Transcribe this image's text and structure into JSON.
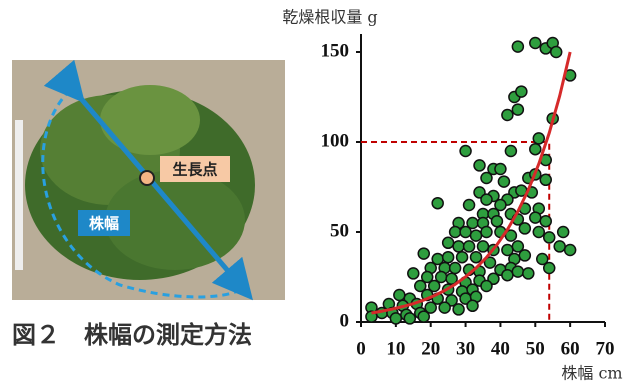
{
  "photo": {
    "growth_point_label": "生長点",
    "width_label": "株幅",
    "caption": "図２　株幅の測定方法"
  },
  "chart_data": {
    "type": "scatter",
    "y_label": "乾燥根収量 g",
    "x_label": "株幅 cm",
    "xlim": [
      0,
      70
    ],
    "xticks": [
      0,
      10,
      20,
      30,
      40,
      50,
      60,
      70
    ],
    "ylim": [
      0,
      160
    ],
    "yticks": [
      0,
      50,
      100,
      150
    ],
    "series": [
      {
        "type": "scatter",
        "color": "#2e9e3e",
        "x": [
          45,
          50,
          53,
          55,
          56,
          60,
          44,
          46,
          45,
          42,
          51,
          55,
          50,
          53,
          43,
          30,
          34,
          38,
          40,
          36,
          48,
          50,
          53,
          41,
          44,
          46,
          49,
          38,
          42,
          34,
          36,
          40,
          22,
          31,
          35,
          38,
          43,
          47,
          51,
          28,
          32,
          35,
          39,
          45,
          50,
          53,
          27,
          30,
          33,
          36,
          40,
          43,
          47,
          51,
          54,
          58,
          57,
          60,
          25,
          28,
          31,
          35,
          38,
          42,
          45,
          18,
          22,
          25,
          29,
          33,
          37,
          44,
          47,
          52,
          20,
          24,
          27,
          31,
          34,
          40,
          43,
          54,
          15,
          19,
          23,
          26,
          30,
          34,
          38,
          42,
          45,
          17,
          21,
          25,
          29,
          32,
          36,
          48,
          11,
          14,
          19,
          22,
          26,
          30,
          33,
          8,
          12,
          16,
          20,
          24,
          28,
          32,
          3,
          6,
          9,
          13,
          17,
          3,
          10,
          14,
          18
        ],
        "values": [
          153,
          155,
          152,
          155,
          150,
          137,
          125,
          128,
          118,
          115,
          102,
          113,
          96,
          90,
          95,
          95,
          87,
          85,
          85,
          80,
          80,
          82,
          79,
          78,
          72,
          73,
          72,
          70,
          68,
          72,
          68,
          65,
          66,
          65,
          60,
          60,
          60,
          63,
          63,
          55,
          55,
          55,
          56,
          57,
          58,
          56,
          50,
          50,
          48,
          50,
          50,
          48,
          52,
          50,
          47,
          50,
          42,
          40,
          44,
          42,
          42,
          42,
          40,
          40,
          42,
          38,
          35,
          36,
          36,
          36,
          33,
          35,
          37,
          35,
          30,
          30,
          30,
          29,
          28,
          29,
          30,
          30,
          27,
          25,
          25,
          24,
          22,
          23,
          24,
          26,
          28,
          20,
          20,
          18,
          17,
          18,
          20,
          27,
          15,
          13,
          15,
          13,
          12,
          13,
          14,
          10,
          9,
          10,
          8,
          8,
          7,
          9,
          8,
          5,
          5,
          4,
          5,
          3,
          2,
          2,
          3
        ]
      },
      {
        "type": "line",
        "color": "#d62a2a",
        "x": [
          3,
          6,
          9,
          12,
          15,
          18,
          21,
          24,
          27,
          30,
          33,
          36,
          39,
          42,
          45,
          48,
          51,
          54,
          57,
          60
        ],
        "values": [
          5.0,
          6.0,
          7.2,
          8.6,
          10.2,
          12.2,
          14.6,
          17.5,
          20.9,
          25.1,
          30.0,
          35.9,
          42.9,
          51.3,
          61.4,
          73.4,
          87.8,
          105,
          125.6,
          150
        ]
      }
    ],
    "reference_lines": {
      "x": 54,
      "y": 100,
      "color": "#c00000"
    }
  }
}
